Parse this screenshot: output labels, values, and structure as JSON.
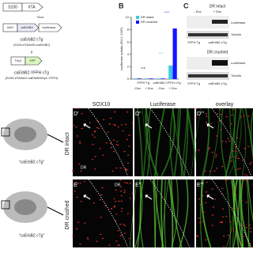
{
  "panel_a": {
    "s100": "S100",
    "rttA": "rtTA",
    "teto": "tetO",
    "caerbb2": "caErbB2",
    "luciferase": "luciferase",
    "dox": "+Dox",
    "ctg_name": "caErbB2 cTg",
    "ctg_genotype": "(S100-rtTA/tetO-caErbB2)",
    "cross": "x",
    "thy1": "Thy1",
    "yfp": "YFP",
    "yfp_ctg_name": "caErbB2-YFPH cTg",
    "yfp_ctg_genotype": "(S100-rtTA/tetO-caErbB2/thy1-YFPH)"
  },
  "chart_data": {
    "type": "bar",
    "panel_label": "B",
    "y_label": "Luciferase activity (RLU, X10⁸)",
    "categories": [
      "- Dox",
      "+ Dox",
      "- Dox",
      "+ Dox"
    ],
    "groups": [
      "YFPH Tg",
      "caErbB2-YFPH cTg"
    ],
    "series": [
      {
        "name": "DR intact",
        "color": "#3cc6e6",
        "values": [
          0.1,
          0.1,
          0.1,
          2.2
        ]
      },
      {
        "name": "DR crushed",
        "color": "#1414ff",
        "values": [
          0.1,
          0.1,
          0.1,
          8.2
        ]
      }
    ],
    "ylim": [
      0,
      10
    ],
    "yticks": [
      0,
      2,
      4,
      6,
      8,
      10
    ],
    "annotations": [
      "n.s",
      "****",
      "****"
    ]
  },
  "panel_c": {
    "label": "C",
    "intact": "DR intact",
    "crushed": "DR crushed",
    "minus_dox": "- Dox",
    "plus_dox": "+ Dox",
    "luciferase": "Luciferase",
    "tubulin": "Tubulin",
    "yfph": "YFPH Tg",
    "ctg": "caErbB2 cTg"
  },
  "panel_d": {
    "row": "DR intact",
    "label1": "D'",
    "label2": "D''",
    "label3": "D'''",
    "col1": "SOX10",
    "col2": "Luciferase",
    "col3": "overlay",
    "dr": "DR",
    "schematic": "\"caErbB2 cTg\""
  },
  "panel_e": {
    "row": "DR crushed",
    "label1": "E'",
    "label2": "E''",
    "label3": "E'''",
    "dr": "DR",
    "schematic": "\"caErbB2 cTg\""
  }
}
